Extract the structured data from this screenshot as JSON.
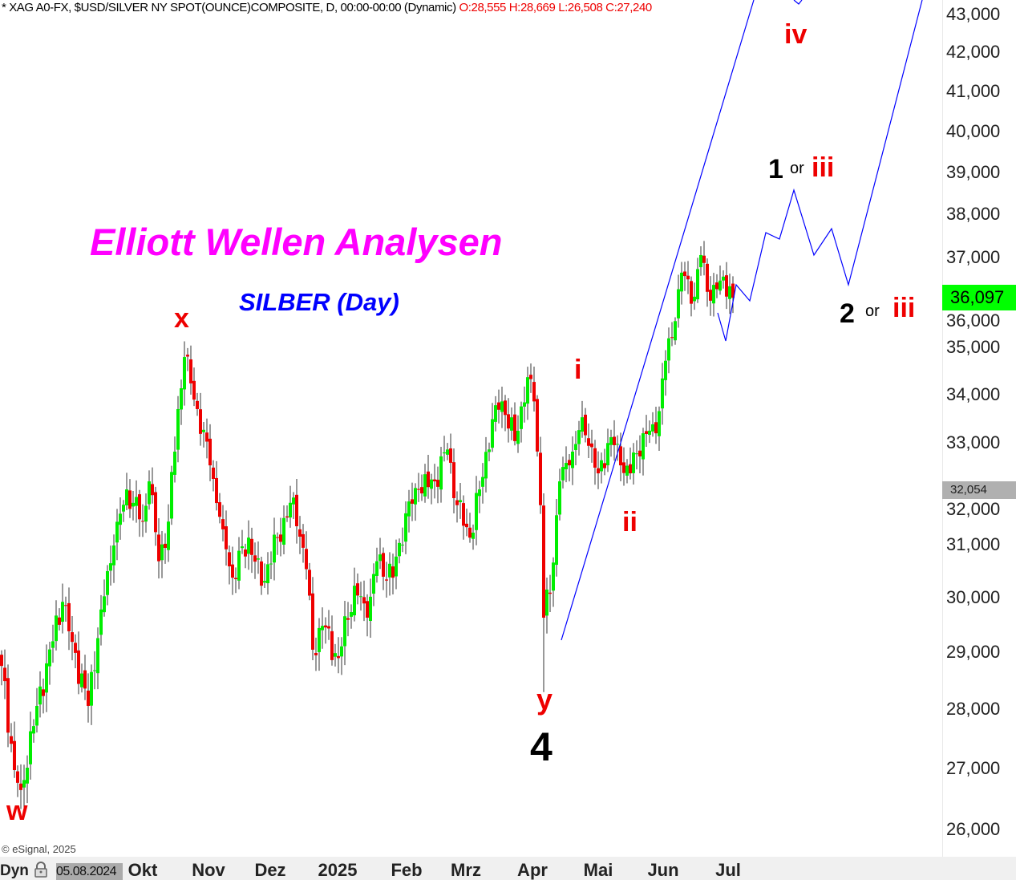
{
  "header": {
    "symbol_text": "* XAG A0-FX, $USD/SILVER NY SPOT(OUNCE)COMPOSITE, D, 00:00-00:00 (Dynamic)",
    "ohlc_text": "O:28,555 H:28,669 L:26,508 C:27,240"
  },
  "title": "Elliott Wellen Analysen",
  "subtitle": "SILBER (Day)",
  "copyright": "© eSignal, 2025",
  "footer": {
    "dyn_label": "Dyn",
    "date_value": "05.08.2024"
  },
  "wave_labels": {
    "w": "w",
    "x": "x",
    "y": "y",
    "four": "4",
    "i": "i",
    "ii": "ii",
    "iv": "iv",
    "one": "1",
    "or1": "or",
    "iii1": "iii",
    "two": "2",
    "or2": "or",
    "iii2": "iii"
  },
  "price_boxes": {
    "last": {
      "text": "36,097",
      "value": 36097,
      "bg": "#00ff00"
    },
    "marker": {
      "text": "32,054",
      "value": 32054,
      "bg": "#b0b0b0"
    }
  },
  "colors": {
    "up": "#00ee00",
    "down": "#ee0000",
    "projection": "#0000ff"
  },
  "chart_data": {
    "type": "candlestick",
    "title": "",
    "y_scale": "log",
    "ylim": [
      25800,
      43500
    ],
    "grid": false,
    "y_ticks": [
      "26,000",
      "27,000",
      "28,000",
      "29,000",
      "30,000",
      "31,000",
      "32,000",
      "33,000",
      "34,000",
      "35,000",
      "36,000",
      "37,000",
      "38,000",
      "39,000",
      "40,000",
      "41,000",
      "42,000",
      "43,000"
    ],
    "x_ticks": [
      "Okt",
      "Nov",
      "Dez",
      "2025",
      "Feb",
      "Mrz",
      "Apr",
      "Mai",
      "Jun",
      "Jul"
    ],
    "close_waypoints": [
      [
        0,
        28760
      ],
      [
        4,
        26970
      ],
      [
        6,
        26640
      ],
      [
        11,
        28060
      ],
      [
        19,
        29920
      ],
      [
        22,
        29190
      ],
      [
        27,
        28060
      ],
      [
        31,
        29780
      ],
      [
        35,
        30980
      ],
      [
        39,
        32070
      ],
      [
        44,
        31440
      ],
      [
        46,
        32230
      ],
      [
        49,
        30680
      ],
      [
        52,
        31440
      ],
      [
        55,
        33700
      ],
      [
        57,
        34800
      ],
      [
        61,
        33700
      ],
      [
        65,
        32550
      ],
      [
        69,
        31290
      ],
      [
        72,
        30370
      ],
      [
        77,
        31130
      ],
      [
        81,
        30220
      ],
      [
        86,
        31130
      ],
      [
        91,
        31910
      ],
      [
        95,
        30530
      ],
      [
        97,
        29050
      ],
      [
        100,
        29480
      ],
      [
        105,
        28900
      ],
      [
        110,
        30220
      ],
      [
        114,
        29630
      ],
      [
        117,
        30680
      ],
      [
        122,
        30370
      ],
      [
        126,
        31600
      ],
      [
        130,
        32070
      ],
      [
        135,
        32230
      ],
      [
        139,
        32870
      ],
      [
        142,
        31760
      ],
      [
        146,
        31130
      ],
      [
        149,
        32070
      ],
      [
        154,
        33780
      ],
      [
        156,
        33860
      ],
      [
        160,
        33040
      ],
      [
        164,
        34370
      ],
      [
        166,
        33860
      ],
      [
        168,
        31760
      ],
      [
        169,
        29630
      ],
      [
        171,
        30070
      ],
      [
        174,
        32230
      ],
      [
        177,
        32550
      ],
      [
        181,
        33530
      ],
      [
        186,
        32390
      ],
      [
        190,
        33120
      ],
      [
        193,
        32550
      ],
      [
        196,
        32390
      ],
      [
        200,
        33200
      ],
      [
        204,
        33200
      ],
      [
        207,
        34720
      ],
      [
        210,
        35580
      ],
      [
        212,
        36660
      ],
      [
        216,
        36120
      ],
      [
        218,
        37060
      ],
      [
        221,
        36030
      ],
      [
        225,
        36570
      ],
      [
        228,
        36097
      ]
    ]
  }
}
